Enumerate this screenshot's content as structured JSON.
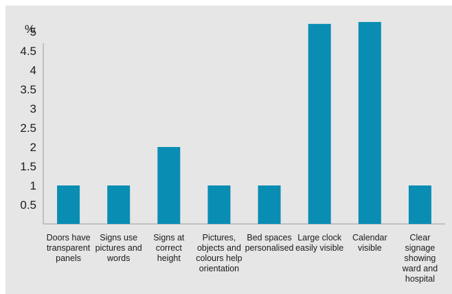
{
  "chart_data": {
    "type": "bar",
    "unit_label": "%",
    "categories": [
      "Doors have transparent panels",
      "Signs use pictures and words",
      "Signs at correct height",
      "Pictures, objects and colours help orientation",
      "Bed spaces personalised",
      "Large clock easily visible",
      "Calendar visible",
      "Clear signage showing ward and hospital"
    ],
    "category_lines": [
      [
        "Doors have",
        "transparent",
        "panels"
      ],
      [
        "Signs use",
        "pictures and",
        "words"
      ],
      [
        "Signs at",
        "correct",
        "height"
      ],
      [
        "Pictures,",
        "objects and",
        "colours help",
        "orientation"
      ],
      [
        "Bed spaces",
        "personalised"
      ],
      [
        "Large clock",
        "easily visible"
      ],
      [
        "Calendar",
        "visible"
      ],
      [
        "Clear",
        "signage",
        "showing",
        "ward and",
        "hospital"
      ]
    ],
    "values": [
      1,
      1,
      2,
      1,
      1,
      5.2,
      5.25,
      1
    ],
    "yticks": [
      "0.5",
      "1",
      "1.5",
      "2",
      "2.5",
      "3",
      "3.5",
      "4",
      "4.5",
      "5"
    ],
    "ylim": [
      0,
      5.5
    ],
    "grid": false,
    "bar_color": "#0a8db3",
    "background_color": "#e6e6e6",
    "axis_color": "#9a9a9a"
  }
}
